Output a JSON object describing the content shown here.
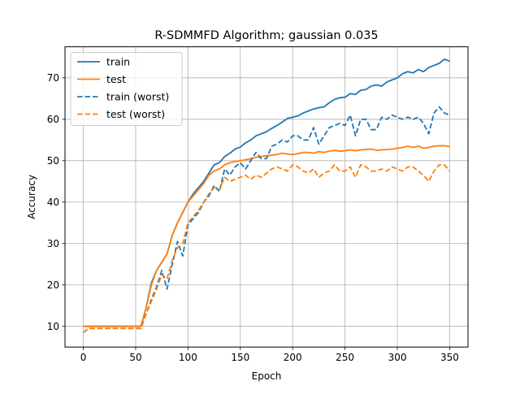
{
  "chart_data": {
    "type": "line",
    "title": "R-SDMMFD Algorithm; gaussian 0.035",
    "xlabel": "Epoch",
    "ylabel": "Accuracy",
    "xlim": [
      -17.5,
      367.5
    ],
    "ylim": [
      5,
      77.5
    ],
    "xticks": [
      0,
      50,
      100,
      150,
      200,
      250,
      300,
      350
    ],
    "yticks": [
      10,
      20,
      30,
      40,
      50,
      60,
      70
    ],
    "grid": true,
    "legend_position": "top-left",
    "x": [
      0,
      5,
      10,
      15,
      20,
      25,
      30,
      35,
      40,
      45,
      50,
      55,
      60,
      65,
      70,
      75,
      80,
      85,
      90,
      95,
      100,
      105,
      110,
      115,
      120,
      125,
      130,
      135,
      140,
      145,
      150,
      155,
      160,
      165,
      170,
      175,
      180,
      185,
      190,
      195,
      200,
      205,
      210,
      215,
      220,
      225,
      230,
      235,
      240,
      245,
      250,
      255,
      260,
      265,
      270,
      275,
      280,
      285,
      290,
      295,
      300,
      305,
      310,
      315,
      320,
      325,
      330,
      335,
      340,
      345,
      350
    ],
    "series": [
      {
        "name": "train",
        "color": "#1f77b4",
        "dash": "solid",
        "values": [
          10.0,
          10.0,
          10.0,
          10.0,
          10.0,
          10.0,
          10.0,
          10.0,
          10.0,
          10.0,
          10.0,
          10.0,
          14.5,
          20.5,
          23.5,
          25.5,
          27.5,
          32.0,
          35.0,
          37.5,
          40.0,
          42.0,
          43.5,
          45.0,
          47.0,
          49.0,
          49.5,
          51.0,
          51.8,
          52.8,
          53.3,
          54.3,
          55.0,
          56.0,
          56.5,
          57.0,
          57.8,
          58.5,
          59.3,
          60.2,
          60.5,
          60.8,
          61.5,
          62.0,
          62.5,
          62.8,
          63.0,
          64.0,
          64.8,
          65.2,
          65.3,
          66.2,
          66.0,
          67.0,
          67.2,
          68.0,
          68.3,
          68.0,
          69.0,
          69.5,
          70.0,
          71.0,
          71.5,
          71.2,
          72.0,
          71.5,
          72.5,
          73.0,
          73.5,
          74.5,
          74.0
        ]
      },
      {
        "name": "test",
        "color": "#ff7f0e",
        "dash": "solid",
        "values": [
          10.0,
          10.0,
          10.0,
          10.0,
          10.0,
          10.0,
          10.0,
          10.0,
          10.0,
          10.0,
          10.0,
          10.0,
          14.5,
          20.0,
          23.5,
          25.5,
          27.5,
          32.0,
          35.0,
          37.5,
          40.0,
          41.5,
          43.0,
          44.5,
          46.5,
          47.5,
          48.0,
          49.0,
          49.5,
          49.8,
          50.0,
          50.2,
          50.5,
          50.8,
          51.0,
          51.2,
          51.3,
          51.5,
          51.8,
          51.6,
          51.5,
          51.7,
          52.0,
          52.0,
          51.8,
          52.2,
          52.0,
          52.3,
          52.5,
          52.3,
          52.4,
          52.6,
          52.4,
          52.6,
          52.7,
          52.8,
          52.5,
          52.6,
          52.7,
          52.8,
          53.0,
          53.2,
          53.5,
          53.2,
          53.5,
          53.0,
          53.2,
          53.5,
          53.6,
          53.6,
          53.4
        ]
      },
      {
        "name": "train (worst)",
        "color": "#1f77b4",
        "dash": "dashed",
        "values": [
          8.5,
          9.5,
          9.5,
          9.5,
          9.5,
          9.5,
          9.5,
          9.5,
          9.5,
          9.5,
          9.5,
          9.5,
          13.0,
          16.5,
          19.5,
          23.5,
          19.0,
          25.0,
          30.5,
          27.0,
          34.5,
          36.0,
          37.5,
          40.0,
          41.5,
          44.0,
          42.5,
          48.0,
          46.5,
          48.5,
          49.5,
          48.0,
          50.0,
          52.0,
          50.5,
          50.5,
          53.5,
          54.0,
          55.0,
          54.5,
          56.0,
          56.0,
          55.0,
          55.0,
          58.0,
          54.0,
          56.0,
          58.0,
          58.5,
          59.0,
          58.5,
          61.0,
          56.0,
          60.0,
          60.0,
          57.5,
          57.5,
          60.5,
          60.0,
          61.0,
          60.5,
          60.0,
          60.5,
          60.0,
          60.5,
          59.0,
          56.5,
          61.5,
          63.0,
          61.5,
          61.0
        ]
      },
      {
        "name": "test (worst)",
        "color": "#ff7f0e",
        "dash": "dashed",
        "values": [
          8.5,
          9.5,
          9.5,
          9.5,
          9.5,
          9.5,
          9.5,
          9.5,
          9.5,
          9.5,
          9.5,
          9.5,
          13.0,
          16.0,
          19.0,
          22.5,
          21.5,
          26.0,
          29.0,
          30.0,
          35.0,
          36.5,
          38.0,
          40.0,
          42.0,
          43.5,
          43.0,
          46.0,
          45.0,
          45.5,
          46.0,
          46.5,
          45.5,
          46.5,
          46.0,
          47.0,
          48.0,
          48.5,
          48.0,
          47.5,
          49.0,
          48.5,
          47.5,
          47.0,
          48.0,
          46.0,
          47.0,
          47.5,
          49.0,
          47.5,
          47.5,
          48.5,
          46.0,
          49.0,
          48.5,
          47.5,
          47.5,
          48.0,
          47.5,
          48.5,
          48.0,
          47.5,
          48.5,
          48.5,
          47.5,
          46.5,
          45.0,
          47.5,
          49.0,
          49.0,
          47.5
        ]
      }
    ]
  }
}
